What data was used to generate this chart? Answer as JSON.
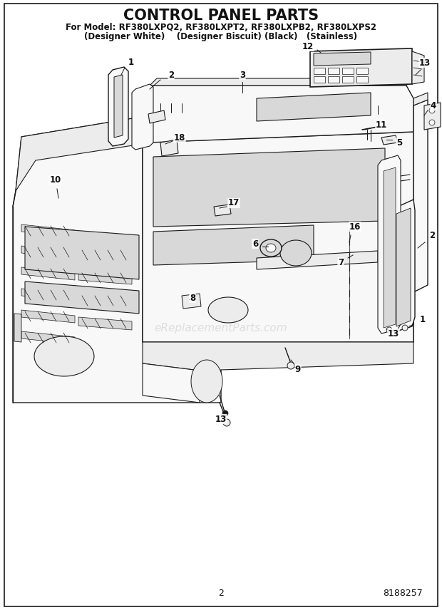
{
  "title": "CONTROL PANEL PARTS",
  "subtitle1": "For Model: RF380LXPQ2, RF380LXPT2, RF380LXPB2, RF380LXPS2",
  "subtitle2": "(Designer White)    (Designer Biscuit) (Black)   (Stainless)",
  "page_number": "2",
  "doc_number": "8188257",
  "watermark": "eReplacementParts.com",
  "bg": "#ffffff",
  "lc": "#1a1a1a",
  "fc_light": "#f8f8f8",
  "fc_mid": "#ececec",
  "fc_dark": "#d8d8d8",
  "wm_color": "#c8c8c8"
}
